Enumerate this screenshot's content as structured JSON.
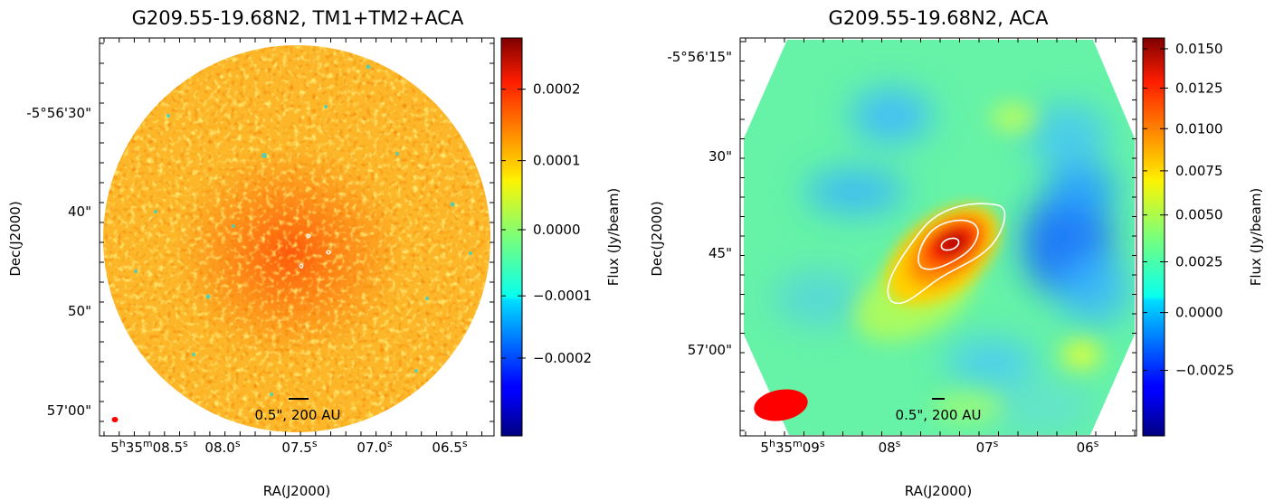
{
  "chart_data": [
    {
      "type": "heatmap",
      "title": "G209.55-19.68N2, TM1+TM2+ACA",
      "xlabel": "RA(J2000)",
      "ylabel": "Dec(J2000)",
      "colorbar_label": "Flux (Jy/beam)",
      "colormap": "jet",
      "x_ticks": [
        "5h35m08.5s",
        "08.0s",
        "07.5s",
        "07.0s",
        "06.5s"
      ],
      "x_tick_parts": [
        [
          "5",
          "h",
          "35",
          "m",
          "08.5",
          "s"
        ],
        [
          "08.0",
          "s"
        ],
        [
          "07.5",
          "s"
        ],
        [
          "07.0",
          "s"
        ],
        [
          "06.5",
          "s"
        ]
      ],
      "y_ticks": [
        "-5°56'30\"",
        "40\"",
        "50\"",
        "57'00\""
      ],
      "colorbar_ticks": [
        "0.0002",
        "0.0001",
        "0.0000",
        "−0.0001",
        "−0.0002"
      ],
      "colorbar_tick_values": [
        0.0002,
        0.0001,
        0.0,
        -0.0001,
        -0.0002
      ],
      "colorbar_range": [
        -0.00035,
        0.00027
      ],
      "scalebar_label": "0.5\", 200 AU",
      "beam_color": "#ff0000"
    },
    {
      "type": "heatmap",
      "title": "G209.55-19.68N2, ACA",
      "xlabel": "RA(J2000)",
      "ylabel": "Dec(J2000)",
      "colorbar_label": "Flux (Jy/beam)",
      "colormap": "jet",
      "x_ticks": [
        "5h35m09s",
        "08s",
        "07s",
        "06s"
      ],
      "x_tick_parts": [
        [
          "5",
          "h",
          "35",
          "m",
          "09",
          "s"
        ],
        [
          "08",
          "s"
        ],
        [
          "07",
          "s"
        ],
        [
          "06",
          "s"
        ]
      ],
      "y_ticks": [
        "-5°56'15\"",
        "30\"",
        "45\"",
        "57'00\""
      ],
      "colorbar_ticks": [
        "0.0150",
        "0.0125",
        "0.0100",
        "0.0075",
        "0.0050",
        "0.0025",
        "0.0000",
        "−0.0025"
      ],
      "colorbar_tick_values": [
        0.015,
        0.0125,
        0.01,
        0.0075,
        0.005,
        0.0025,
        0.0,
        -0.0025
      ],
      "colorbar_range": [
        -0.0045,
        0.0157
      ],
      "scalebar_label": "0.5\", 200 AU",
      "beam_color": "#ff0000"
    }
  ]
}
